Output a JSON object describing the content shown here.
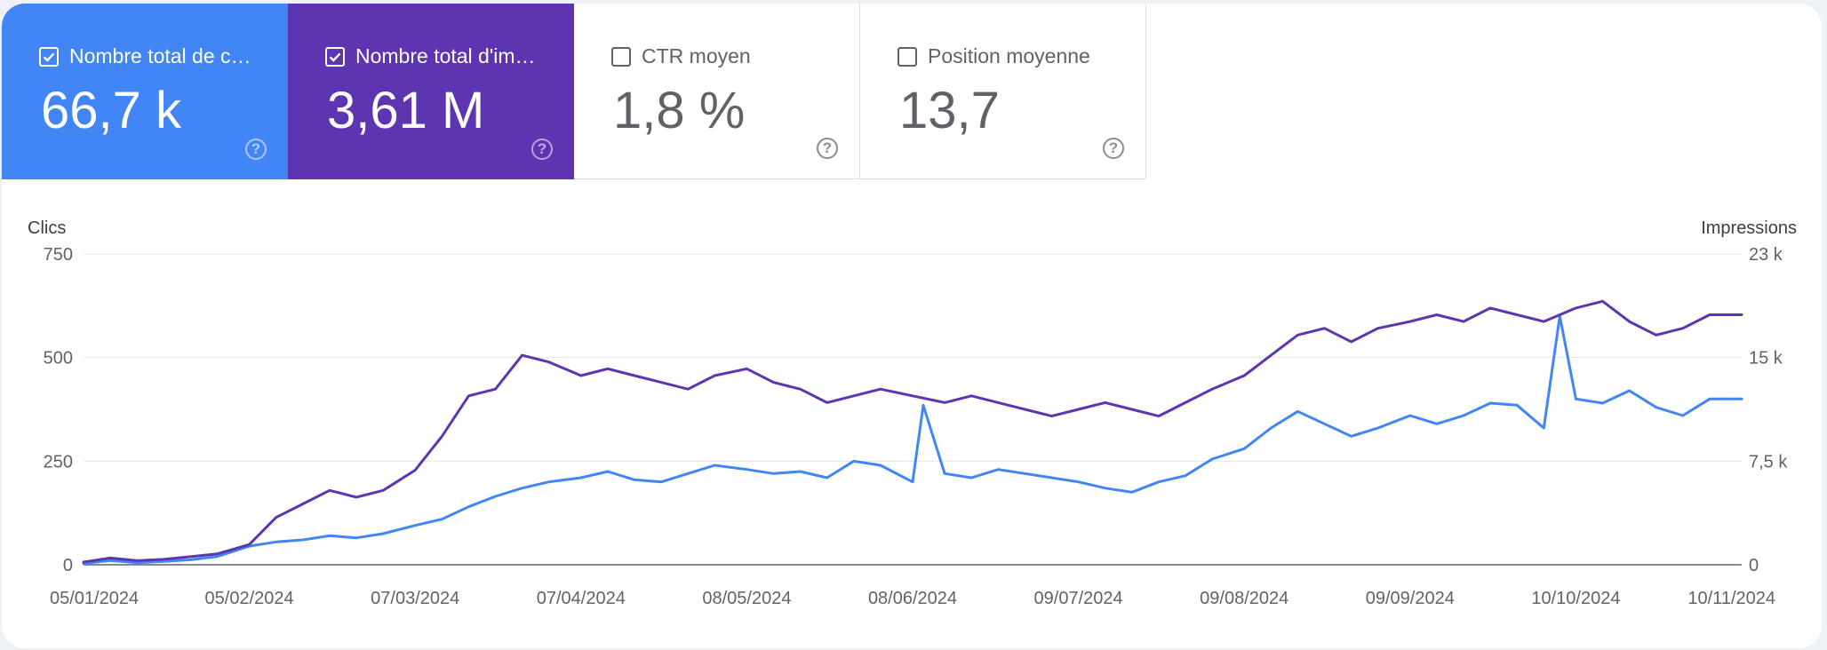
{
  "cards": [
    {
      "label": "Nombre total de c…",
      "value": "66,7 k",
      "checked": true,
      "color": "#4285f4"
    },
    {
      "label": "Nombre total d'im…",
      "value": "3,61 M",
      "checked": true,
      "color": "#5e35b1"
    },
    {
      "label": "CTR moyen",
      "value": "1,8 %",
      "checked": false,
      "color": "#ffffff"
    },
    {
      "label": "Position moyenne",
      "value": "13,7",
      "checked": false,
      "color": "#ffffff"
    }
  ],
  "help_glyph": "?",
  "chart_data": {
    "type": "line",
    "ylabel_left": "Clics",
    "ylabel_right": "Impressions",
    "x_ticks": [
      "05/01/2024",
      "05/02/2024",
      "07/03/2024",
      "07/04/2024",
      "08/05/2024",
      "08/06/2024",
      "09/07/2024",
      "09/08/2024",
      "09/09/2024",
      "10/10/2024",
      "10/11/2024"
    ],
    "y_left_ticks": [
      "0",
      "250",
      "500",
      "750"
    ],
    "y_right_ticks": [
      "0",
      "7,5 k",
      "15 k",
      "23 k"
    ],
    "y_left_range": [
      0,
      750
    ],
    "y_right_range": [
      0,
      23000
    ],
    "grid": true,
    "series": [
      {
        "axis": "left",
        "color": "#4285f4",
        "x": [
          "2024-01-05",
          "2024-01-10",
          "2024-01-15",
          "2024-01-20",
          "2024-01-25",
          "2024-01-30",
          "2024-02-05",
          "2024-02-10",
          "2024-02-15",
          "2024-02-20",
          "2024-02-25",
          "2024-03-01",
          "2024-03-07",
          "2024-03-12",
          "2024-03-17",
          "2024-03-22",
          "2024-03-27",
          "2024-04-01",
          "2024-04-07",
          "2024-04-12",
          "2024-04-17",
          "2024-04-22",
          "2024-04-27",
          "2024-05-02",
          "2024-05-08",
          "2024-05-13",
          "2024-05-18",
          "2024-05-23",
          "2024-05-28",
          "2024-06-02",
          "2024-06-08",
          "2024-06-10",
          "2024-06-14",
          "2024-06-19",
          "2024-06-24",
          "2024-06-29",
          "2024-07-04",
          "2024-07-09",
          "2024-07-14",
          "2024-07-19",
          "2024-07-24",
          "2024-07-29",
          "2024-08-03",
          "2024-08-09",
          "2024-08-14",
          "2024-08-19",
          "2024-08-24",
          "2024-08-29",
          "2024-09-03",
          "2024-09-09",
          "2024-09-14",
          "2024-09-19",
          "2024-09-24",
          "2024-09-29",
          "2024-10-04",
          "2024-10-07",
          "2024-10-10",
          "2024-10-15",
          "2024-10-20",
          "2024-10-25",
          "2024-10-30",
          "2024-11-04",
          "2024-11-10"
        ],
        "values": [
          3,
          10,
          5,
          8,
          12,
          20,
          45,
          55,
          60,
          70,
          65,
          75,
          95,
          110,
          140,
          165,
          185,
          200,
          210,
          225,
          205,
          200,
          220,
          240,
          230,
          220,
          225,
          210,
          250,
          240,
          200,
          385,
          220,
          210,
          230,
          220,
          210,
          200,
          185,
          175,
          200,
          215,
          255,
          280,
          330,
          370,
          340,
          310,
          330,
          360,
          340,
          360,
          390,
          385,
          330,
          600,
          400,
          390,
          420,
          380,
          360,
          400,
          400
        ]
      },
      {
        "axis": "right",
        "color": "#5e35b1",
        "x": [
          "2024-01-05",
          "2024-01-10",
          "2024-01-15",
          "2024-01-20",
          "2024-01-25",
          "2024-01-30",
          "2024-02-05",
          "2024-02-10",
          "2024-02-15",
          "2024-02-20",
          "2024-02-25",
          "2024-03-01",
          "2024-03-07",
          "2024-03-12",
          "2024-03-17",
          "2024-03-22",
          "2024-03-27",
          "2024-04-01",
          "2024-04-07",
          "2024-04-12",
          "2024-04-17",
          "2024-04-22",
          "2024-04-27",
          "2024-05-02",
          "2024-05-08",
          "2024-05-13",
          "2024-05-18",
          "2024-05-23",
          "2024-05-28",
          "2024-06-02",
          "2024-06-08",
          "2024-06-14",
          "2024-06-19",
          "2024-06-24",
          "2024-06-29",
          "2024-07-04",
          "2024-07-09",
          "2024-07-14",
          "2024-07-19",
          "2024-07-24",
          "2024-07-29",
          "2024-08-03",
          "2024-08-09",
          "2024-08-14",
          "2024-08-19",
          "2024-08-24",
          "2024-08-29",
          "2024-09-03",
          "2024-09-09",
          "2024-09-14",
          "2024-09-19",
          "2024-09-24",
          "2024-09-29",
          "2024-10-04",
          "2024-10-10",
          "2024-10-15",
          "2024-10-20",
          "2024-10-25",
          "2024-10-30",
          "2024-11-04",
          "2024-11-10"
        ],
        "values": [
          200,
          500,
          300,
          400,
          600,
          800,
          1500,
          3500,
          4500,
          5500,
          5000,
          5500,
          7000,
          9500,
          12500,
          13000,
          15500,
          15000,
          14000,
          14500,
          14000,
          13500,
          13000,
          14000,
          14500,
          13500,
          13000,
          12000,
          12500,
          13000,
          12500,
          12000,
          12500,
          12000,
          11500,
          11000,
          11500,
          12000,
          11500,
          11000,
          12000,
          13000,
          14000,
          15500,
          17000,
          17500,
          16500,
          17500,
          18000,
          18500,
          18000,
          19000,
          18500,
          18000,
          19000,
          19500,
          18000,
          17000,
          17500,
          18500,
          18500
        ]
      }
    ]
  }
}
